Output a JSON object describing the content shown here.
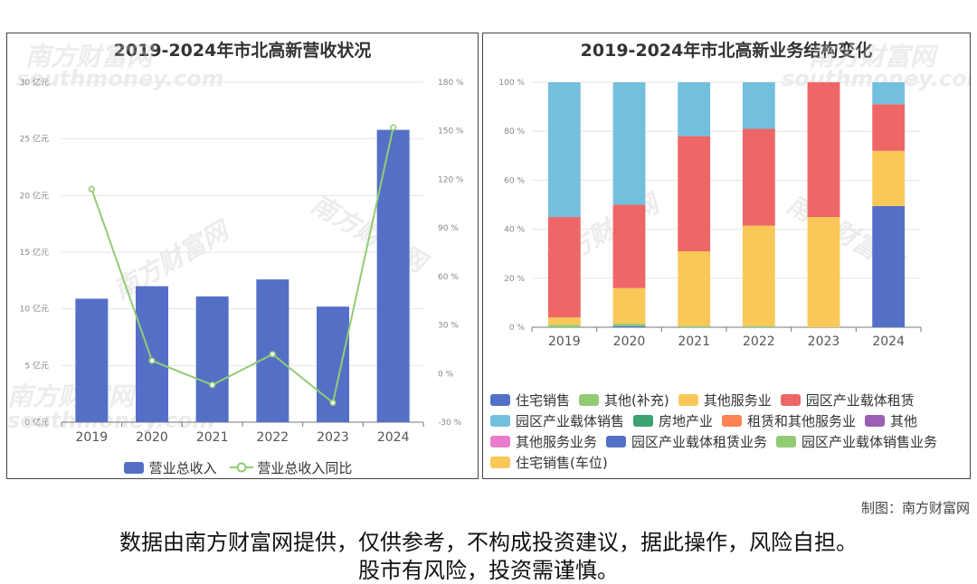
{
  "chart_data": [
    {
      "type": "bar",
      "title": "2019-2024年市北高新营收状况",
      "categories": [
        "2019",
        "2020",
        "2021",
        "2022",
        "2023",
        "2024"
      ],
      "series": [
        {
          "name": "营业总收入",
          "type": "bar",
          "axis": "left",
          "color": "#5470c6",
          "values": [
            10.9,
            12.0,
            11.1,
            12.6,
            10.2,
            25.8
          ]
        },
        {
          "name": "营业总收入同比",
          "type": "line",
          "axis": "right",
          "color": "#91cc75",
          "values": [
            114,
            8,
            -7,
            12,
            -18,
            152
          ]
        }
      ],
      "ylim_left": [
        0,
        30
      ],
      "ylim_right": [
        -30,
        180
      ],
      "yticks_left": [
        "0 亿元",
        "5 亿元",
        "10 亿元",
        "15 亿元",
        "20 亿元",
        "25 亿元",
        "30 亿元"
      ],
      "yticks_right": [
        "-30 %",
        "0 %",
        "30 %",
        "60 %",
        "90 %",
        "120 %",
        "150 %",
        "180 %"
      ],
      "grid": true,
      "legend_position": "bottom"
    },
    {
      "type": "bar",
      "stacked": true,
      "title": "2019-2024年市北高新业务结构变化",
      "categories": [
        "2019",
        "2020",
        "2021",
        "2022",
        "2023",
        "2024"
      ],
      "ylim": [
        0,
        100
      ],
      "yticks": [
        "0 %",
        "20 %",
        "40 %",
        "60 %",
        "80 %",
        "100 %"
      ],
      "series": [
        {
          "name": "住宅销售",
          "color": "#5470c6",
          "values": [
            0,
            0.5,
            0,
            0,
            0,
            49.5
          ]
        },
        {
          "name": "其他(补充)",
          "color": "#91cc75",
          "values": [
            1,
            1,
            0.5,
            0.5,
            0,
            0
          ]
        },
        {
          "name": "其他服务业",
          "color": "#fac858",
          "values": [
            3,
            14.5,
            30.5,
            41,
            45,
            22.5
          ]
        },
        {
          "name": "园区产业载体租赁",
          "color": "#ee6666",
          "values": [
            41,
            34,
            47,
            39.5,
            55,
            19
          ]
        },
        {
          "name": "园区产业载体销售",
          "color": "#73c0de",
          "values": [
            55,
            50,
            22,
            19,
            0,
            9
          ]
        },
        {
          "name": "房地产业",
          "color": "#3ba272",
          "values": [
            0,
            0,
            0,
            0,
            0,
            0
          ]
        },
        {
          "name": "租赁和其他服务业",
          "color": "#fc8452",
          "values": [
            0,
            0,
            0,
            0,
            0,
            0
          ]
        },
        {
          "name": "其他",
          "color": "#9a60b4",
          "values": [
            0,
            0,
            0,
            0,
            0,
            0
          ]
        },
        {
          "name": "其他服务业务",
          "color": "#ea7ccc",
          "values": [
            0,
            0,
            0,
            0,
            0,
            0
          ]
        },
        {
          "name": "园区产业载体租赁业务",
          "color": "#5470c6",
          "values": [
            0,
            0,
            0,
            0,
            0,
            0
          ]
        },
        {
          "name": "园区产业载体销售业务",
          "color": "#91cc75",
          "values": [
            0,
            0,
            0,
            0,
            0,
            0
          ]
        },
        {
          "name": "住宅销售(车位)",
          "color": "#fac858",
          "values": [
            0,
            0,
            0,
            0,
            0,
            0
          ]
        }
      ],
      "grid": true,
      "legend_position": "bottom"
    }
  ],
  "watermark": {
    "cn": "南方财富网",
    "en": "southmoney.com"
  },
  "footer": {
    "credit": "制图：南方财富网",
    "disclaimer_line1": "数据由南方财富网提供，仅供参考，不构成投资建议，据此操作，风险自担。",
    "disclaimer_line2": "股市有风险，投资需谨慎。"
  }
}
